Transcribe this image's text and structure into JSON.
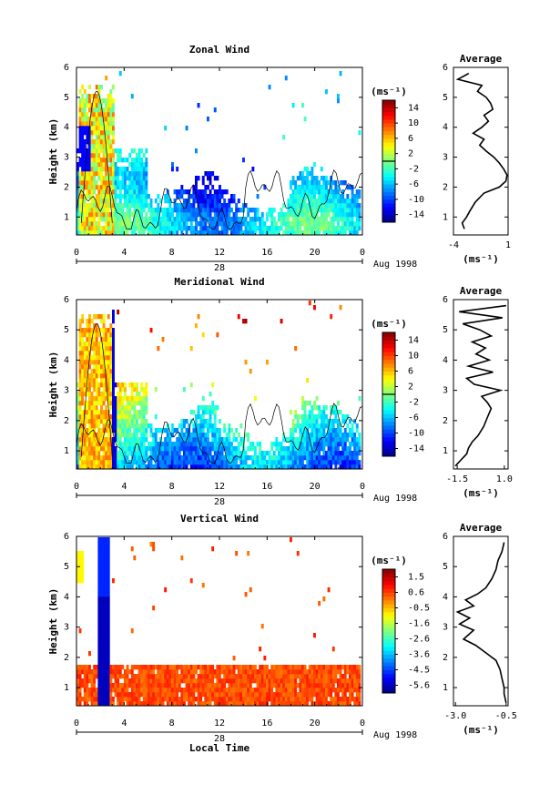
{
  "chart_data": [
    {
      "type": "heatmap",
      "title": "Zonal Wind",
      "ylabel": "Height (km)",
      "xlabel": "",
      "x_ticks": [
        "0",
        "4",
        "8",
        "12",
        "16",
        "20",
        "0"
      ],
      "x_range": [
        0,
        24
      ],
      "date_ticks": [
        "28"
      ],
      "date_label": "Aug 1998",
      "y_ticks": [
        "1",
        "2",
        "3",
        "4",
        "5",
        "6"
      ],
      "y_range": [
        0.4,
        6
      ],
      "colorbar": {
        "unit": "(ms⁻¹)",
        "labels": [
          "14",
          "10",
          "6",
          "2",
          "-2",
          "-6",
          "-10",
          "-14"
        ],
        "range": [
          -16,
          16
        ],
        "contour_level": 0
      },
      "profile": {
        "title": "Average",
        "xlabel": "(ms⁻¹)",
        "x_ticks": [
          "-4",
          "1"
        ],
        "x_range": [
          -4,
          1
        ],
        "height": [
          0.6,
          0.8,
          1.0,
          1.2,
          1.5,
          1.8,
          2.0,
          2.2,
          2.4,
          2.6,
          2.8,
          3.0,
          3.2,
          3.4,
          3.6,
          3.8,
          4.0,
          4.2,
          4.4,
          4.6,
          4.8,
          5.0,
          5.2,
          5.4,
          5.6,
          5.8
        ],
        "value": [
          -3.0,
          -3.2,
          -2.8,
          -2.5,
          -2.0,
          -1.2,
          0.2,
          0.8,
          0.9,
          0.6,
          0.2,
          -0.3,
          -1.0,
          -1.6,
          -1.2,
          -2.2,
          -1.4,
          -0.8,
          -1.2,
          -0.4,
          -0.6,
          -1.0,
          -1.8,
          -1.4,
          -3.6,
          -2.6
        ]
      }
    },
    {
      "type": "heatmap",
      "title": "Meridional Wind",
      "ylabel": "Height (km)",
      "xlabel": "",
      "x_ticks": [
        "0",
        "4",
        "8",
        "12",
        "16",
        "20",
        "0"
      ],
      "x_range": [
        0,
        24
      ],
      "date_ticks": [
        "28"
      ],
      "date_label": "Aug 1998",
      "y_ticks": [
        "1",
        "2",
        "3",
        "4",
        "5",
        "6"
      ],
      "y_range": [
        0.4,
        6
      ],
      "colorbar": {
        "unit": "(ms⁻¹)",
        "labels": [
          "14",
          "10",
          "6",
          "2",
          "-2",
          "-6",
          "-10",
          "-14"
        ],
        "range": [
          -16,
          16
        ],
        "contour_level": 0
      },
      "profile": {
        "title": "Average",
        "xlabel": "(ms⁻¹)",
        "x_ticks": [
          "-1.5",
          "1.0"
        ],
        "x_range": [
          -1.7,
          1.2
        ],
        "height": [
          0.5,
          0.7,
          0.9,
          1.1,
          1.3,
          1.5,
          1.8,
          2.1,
          2.4,
          2.6,
          2.8,
          3.0,
          3.2,
          3.4,
          3.6,
          3.8,
          4.0,
          4.2,
          4.4,
          4.6,
          4.8,
          5.0,
          5.2,
          5.4,
          5.6,
          5.8
        ],
        "value": [
          -1.6,
          -1.3,
          -1.0,
          -0.9,
          -0.7,
          -0.4,
          -0.1,
          0.1,
          0.3,
          0.1,
          -0.2,
          0.8,
          -0.6,
          -1.0,
          0.4,
          -0.9,
          0.2,
          -0.5,
          0.0,
          -0.7,
          0.3,
          -0.3,
          -1.2,
          0.9,
          -1.4,
          1.1
        ]
      }
    },
    {
      "type": "heatmap",
      "title": "Vertical Wind",
      "ylabel": "Height (km)",
      "xlabel": "Local Time",
      "x_ticks": [
        "0",
        "4",
        "8",
        "12",
        "16",
        "20",
        "0"
      ],
      "x_range": [
        0,
        24
      ],
      "date_ticks": [
        "28"
      ],
      "date_label": "Aug 1998",
      "y_ticks": [
        "1",
        "2",
        "3",
        "4",
        "5",
        "6"
      ],
      "y_range": [
        0.4,
        6
      ],
      "colorbar": {
        "unit": "(ms⁻¹)",
        "labels": [
          "1.5",
          "0.6",
          "-0.5",
          "-1.6",
          "-2.6",
          "-3.6",
          "-4.5",
          "-5.6"
        ],
        "range": [
          -6.1,
          2.0
        ]
      },
      "profile": {
        "title": "Average",
        "xlabel": "(ms⁻¹)",
        "x_ticks": [
          "-3.0",
          "-0.5"
        ],
        "x_range": [
          -3.1,
          -0.4
        ],
        "height": [
          0.5,
          0.8,
          1.0,
          1.3,
          1.6,
          1.9,
          2.1,
          2.4,
          2.6,
          2.9,
          3.1,
          3.3,
          3.5,
          3.7,
          3.9,
          4.1,
          4.3,
          4.6,
          4.9,
          5.2,
          5.5,
          5.8
        ],
        "value": [
          -0.5,
          -0.6,
          -0.6,
          -0.7,
          -0.8,
          -1.0,
          -1.4,
          -2.0,
          -2.6,
          -2.1,
          -2.8,
          -2.3,
          -2.9,
          -2.1,
          -2.5,
          -1.9,
          -1.5,
          -1.2,
          -1.0,
          -0.9,
          -0.7,
          -0.6
        ]
      }
    }
  ]
}
